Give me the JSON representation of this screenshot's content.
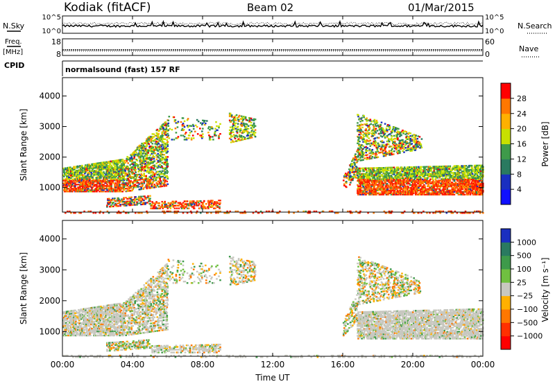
{
  "header": {
    "station": "Kodiak (fitACF)",
    "beam": "Beam 02",
    "date": "01/Mar/2015"
  },
  "status_panels": {
    "nsky_label": "N.Sky",
    "nsearch_label": "N.Search",
    "freq_label": "Freq.",
    "freq_units": "[MHz]",
    "nave_label": "Nave",
    "cpid_label": "CPID",
    "cpid_value": "normalsound (fast) 157 RF",
    "noise_ticks_left": [
      "10^5",
      "10^0"
    ],
    "noise_ticks_right": [
      "10^5",
      "10^0"
    ],
    "freq_ticks": [
      "18",
      "8"
    ],
    "nave_ticks": [
      "60",
      "0"
    ]
  },
  "chart_data": [
    {
      "type": "heatmap",
      "panel": "power",
      "ylabel": "Slant Range [km]",
      "yticks": [
        "4000",
        "3000",
        "2000",
        "1000"
      ],
      "ylim": [
        200,
        4600
      ],
      "colorbar_label": "Power [dB]",
      "colorbar_ticks": [
        "28",
        "24",
        "20",
        "16",
        "12",
        "8",
        "4"
      ],
      "colorbar_colors": [
        "#ff0000",
        "#ff7700",
        "#ffb000",
        "#c8e000",
        "#3e9a4a",
        "#2a7a60",
        "#1a2fc0",
        "#1010ff"
      ]
    },
    {
      "type": "heatmap",
      "panel": "velocity",
      "ylabel": "Velocity [m s⁻¹]",
      "axis_ylabel": "Slant Range [km]",
      "yticks": [
        "4000",
        "3000",
        "2000",
        "1000"
      ],
      "ylim": [
        200,
        4600
      ],
      "colorbar_ticks": [
        "1000",
        "500",
        "100",
        "25",
        "−25",
        "−100",
        "−500",
        "−1000"
      ],
      "colorbar_colors": [
        "#1a2fc0",
        "#2a7a60",
        "#3e9a4a",
        "#70c040",
        "#c8c8c0",
        "#ffb000",
        "#ff7700",
        "#ff3000",
        "#ff0000"
      ]
    }
  ],
  "xaxis": {
    "label": "Time UT",
    "ticks": [
      "00:00",
      "04:00",
      "08:00",
      "12:00",
      "16:00",
      "20:00",
      "00:00"
    ]
  },
  "colors": {
    "frame": "#000000",
    "background": "#ffffff",
    "ground_scatter": "#c8c8c0"
  }
}
